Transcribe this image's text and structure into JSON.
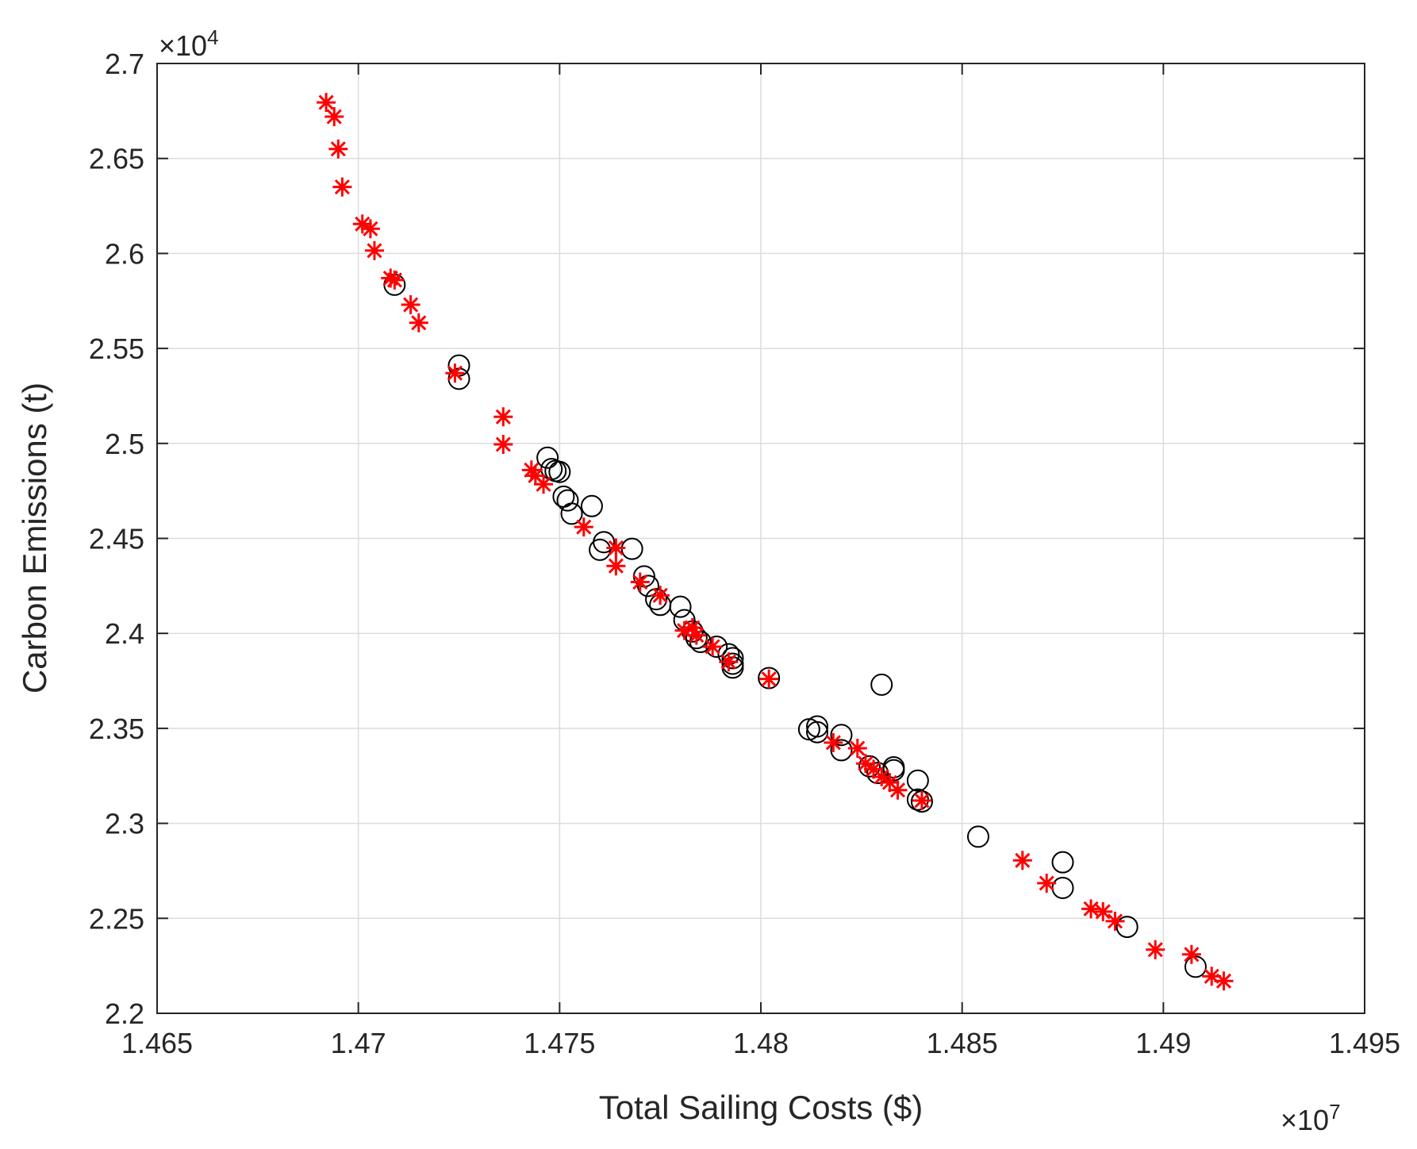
{
  "chart_data": {
    "type": "scatter",
    "title": "",
    "xlabel": "Total Sailing Costs ($)",
    "ylabel": "Carbon Emissions (t)",
    "x_exponent_base": "×10",
    "x_exponent_power": "7",
    "y_exponent_base": "×10",
    "y_exponent_power": "4",
    "xlim": [
      1.465,
      1.495
    ],
    "ylim": [
      2.2,
      2.7
    ],
    "xticks": [
      1.465,
      1.47,
      1.475,
      1.48,
      1.485,
      1.49,
      1.495
    ],
    "xtick_labels": [
      "1.465",
      "1.47",
      "1.475",
      "1.48",
      "1.485",
      "1.49",
      "1.495"
    ],
    "yticks": [
      2.2,
      2.25,
      2.3,
      2.35,
      2.4,
      2.45,
      2.5,
      2.55,
      2.6,
      2.65,
      2.7
    ],
    "ytick_labels": [
      "2.2",
      "2.25",
      "2.3",
      "2.35",
      "2.4",
      "2.45",
      "2.5",
      "2.55",
      "2.6",
      "2.65",
      "2.7"
    ],
    "grid": true,
    "colors": {
      "circle": "#000000",
      "star": "#ff0000",
      "axis": "#262626",
      "grid": "#dcdcdc"
    },
    "series": [
      {
        "name": "circles",
        "marker": "circle",
        "color": "#000000",
        "points": [
          [
            1.4709,
            2.5835
          ],
          [
            1.4725,
            2.541
          ],
          [
            1.4725,
            2.534
          ],
          [
            1.4747,
            2.4925
          ],
          [
            1.4748,
            2.4865
          ],
          [
            1.4749,
            2.4855
          ],
          [
            1.475,
            2.485
          ],
          [
            1.4751,
            2.472
          ],
          [
            1.4752,
            2.47
          ],
          [
            1.4753,
            2.463
          ],
          [
            1.4758,
            2.467
          ],
          [
            1.4761,
            2.448
          ],
          [
            1.476,
            2.444
          ],
          [
            1.4768,
            2.4445
          ],
          [
            1.4771,
            2.43
          ],
          [
            1.4772,
            2.425
          ],
          [
            1.4774,
            2.418
          ],
          [
            1.4775,
            2.415
          ],
          [
            1.478,
            2.414
          ],
          [
            1.4781,
            2.407
          ],
          [
            1.4783,
            2.401
          ],
          [
            1.4784,
            2.3975
          ],
          [
            1.4785,
            2.3955
          ],
          [
            1.4789,
            2.393
          ],
          [
            1.4792,
            2.389
          ],
          [
            1.4793,
            2.387
          ],
          [
            1.4793,
            2.384
          ],
          [
            1.4793,
            2.382
          ],
          [
            1.4802,
            2.3765
          ],
          [
            1.4812,
            2.3495
          ],
          [
            1.4814,
            2.351
          ],
          [
            1.4814,
            2.348
          ],
          [
            1.482,
            2.3465
          ],
          [
            1.482,
            2.3385
          ],
          [
            1.4827,
            2.33
          ],
          [
            1.4829,
            2.3265
          ],
          [
            1.483,
            2.373
          ],
          [
            1.4833,
            2.3295
          ],
          [
            1.4833,
            2.328
          ],
          [
            1.4839,
            2.3225
          ],
          [
            1.4839,
            2.3125
          ],
          [
            1.484,
            2.3115
          ],
          [
            1.4854,
            2.293
          ],
          [
            1.4875,
            2.2795
          ],
          [
            1.4875,
            2.266
          ],
          [
            1.4891,
            2.2455
          ],
          [
            1.4908,
            2.2245
          ]
        ]
      },
      {
        "name": "stars",
        "marker": "star",
        "color": "#ff0000",
        "points": [
          [
            1.4692,
            2.6795
          ],
          [
            1.4694,
            2.672
          ],
          [
            1.4695,
            2.655
          ],
          [
            1.4696,
            2.635
          ],
          [
            1.4701,
            2.6155
          ],
          [
            1.4703,
            2.613
          ],
          [
            1.4704,
            2.6015
          ],
          [
            1.4708,
            2.587
          ],
          [
            1.4709,
            2.586
          ],
          [
            1.4713,
            2.573
          ],
          [
            1.4715,
            2.5635
          ],
          [
            1.4724,
            2.537
          ],
          [
            1.4736,
            2.514
          ],
          [
            1.4736,
            2.4995
          ],
          [
            1.4743,
            2.486
          ],
          [
            1.4744,
            2.483
          ],
          [
            1.4746,
            2.4785
          ],
          [
            1.4756,
            2.456
          ],
          [
            1.4764,
            2.445
          ],
          [
            1.4764,
            2.4355
          ],
          [
            1.477,
            2.427
          ],
          [
            1.4775,
            2.42
          ],
          [
            1.4781,
            2.4015
          ],
          [
            1.4783,
            2.403
          ],
          [
            1.4784,
            2.399
          ],
          [
            1.4788,
            2.393
          ],
          [
            1.4792,
            2.385
          ],
          [
            1.4802,
            2.376
          ],
          [
            1.4818,
            2.3425
          ],
          [
            1.4824,
            2.3395
          ],
          [
            1.4826,
            2.3315
          ],
          [
            1.4828,
            2.3285
          ],
          [
            1.483,
            2.3245
          ],
          [
            1.4832,
            2.3215
          ],
          [
            1.4834,
            2.3175
          ],
          [
            1.484,
            2.312
          ],
          [
            1.4865,
            2.2805
          ],
          [
            1.4871,
            2.2685
          ],
          [
            1.4882,
            2.255
          ],
          [
            1.4885,
            2.2535
          ],
          [
            1.4888,
            2.2485
          ],
          [
            1.4898,
            2.2335
          ],
          [
            1.4907,
            2.231
          ],
          [
            1.4912,
            2.2195
          ],
          [
            1.4915,
            2.217
          ]
        ]
      }
    ]
  }
}
